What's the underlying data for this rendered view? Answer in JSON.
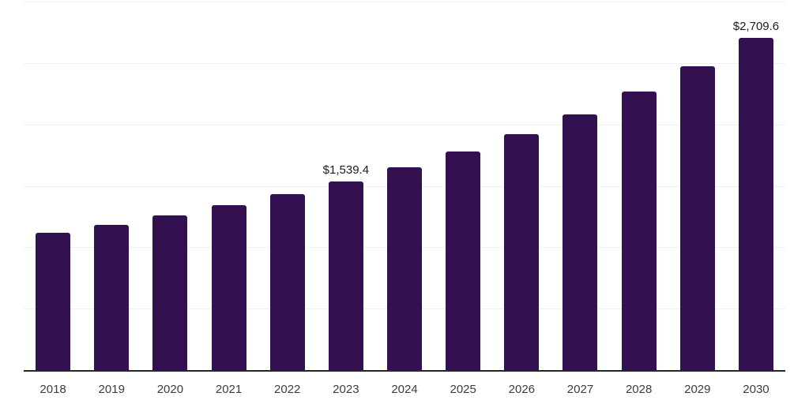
{
  "chart_data": {
    "type": "bar",
    "title": "",
    "xlabel": "",
    "ylabel": "",
    "categories": [
      "2018",
      "2019",
      "2020",
      "2021",
      "2022",
      "2023",
      "2024",
      "2025",
      "2026",
      "2027",
      "2028",
      "2029",
      "2030"
    ],
    "values": [
      1126,
      1190,
      1267,
      1351,
      1440,
      1539.4,
      1658,
      1786,
      1930,
      2086,
      2272,
      2477,
      2709.6
    ],
    "value_labels": {
      "2023": "$1,539.4",
      "2030": "$2,709.6"
    },
    "ylim": [
      0,
      3000
    ],
    "gridline_step": 500,
    "grid": "horizontal",
    "legend": "none",
    "colors": {
      "bar": "#331150",
      "axis": "#262626",
      "gridline": "#f0f0f0",
      "tick_label": "#3d3d3d",
      "value_label": "#1b1b1b",
      "background": "#ffffff"
    }
  }
}
